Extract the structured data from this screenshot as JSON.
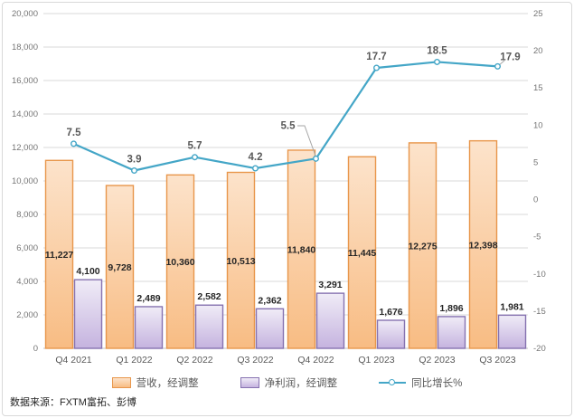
{
  "chart_data": {
    "type": "combo",
    "title": "",
    "categories": [
      "Q4 2021",
      "Q1 2022",
      "Q2 2022",
      "Q3 2022",
      "Q4 2022",
      "Q1 2023",
      "Q2 2023",
      "Q3 2023"
    ],
    "series": [
      {
        "name": "营收，经调整",
        "type": "bar",
        "axis": "left",
        "values": [
          11227,
          9728,
          10360,
          10513,
          11840,
          11445,
          12275,
          12398
        ],
        "labels": [
          "11,227",
          "9,728",
          "10,360",
          "10,513",
          "11,840",
          "11,445",
          "12,275",
          "12,398"
        ],
        "label_position": "inside-center"
      },
      {
        "name": "净利润，经调整",
        "type": "bar",
        "axis": "left",
        "values": [
          4100,
          2489,
          2582,
          2362,
          3291,
          1676,
          1896,
          1981
        ],
        "labels": [
          "4,100",
          "2,489",
          "2,582",
          "2,362",
          "3,291",
          "1,676",
          "1,896",
          "1,981"
        ],
        "label_position": "outside-top"
      },
      {
        "name": "同比增长%",
        "type": "line",
        "axis": "right",
        "values": [
          7.5,
          3.9,
          5.7,
          4.2,
          5.5,
          17.7,
          18.5,
          17.9
        ],
        "labels": [
          "7.5",
          "3.9",
          "5.7",
          "4.2",
          "5.5",
          "17.7",
          "18.5",
          "17.9"
        ],
        "label_position": "above",
        "label_overrides": [
          {
            "index": 4,
            "dx": -31,
            "dy": -33,
            "leader": [
              [
                329,
                139
              ],
              [
                337,
                139
              ],
              [
                349,
                172
              ]
            ]
          },
          {
            "index": 7,
            "dx": 14,
            "dy": -7,
            "leader": [
              [
                558,
                67
              ],
              [
                552,
                72
              ]
            ]
          }
        ]
      }
    ],
    "left_axis": {
      "min": 0,
      "max": 20000,
      "step": 2000,
      "tick_labels": [
        "0",
        "2,000",
        "4,000",
        "6,000",
        "8,000",
        "10,000",
        "12,000",
        "14,000",
        "16,000",
        "18,000",
        "20,000"
      ]
    },
    "right_axis": {
      "min": -20,
      "max": 25,
      "step": 5,
      "tick_labels": [
        "-20",
        "-15",
        "-10",
        "-5",
        "0",
        "5",
        "10",
        "15",
        "20",
        "25"
      ]
    },
    "grid": true,
    "legend_position": "bottom"
  },
  "legend": {
    "items": [
      {
        "label": "营收，经调整",
        "swatch": "bar-orange"
      },
      {
        "label": "净利润，经调整",
        "swatch": "bar-purple"
      },
      {
        "label": "同比增长%",
        "swatch": "line-marker"
      }
    ]
  },
  "source": {
    "label": "数据来源：FXTM富拓、彭博"
  },
  "colors": {
    "revenue_fill_top": "#FCE3CB",
    "revenue_fill_bottom": "#F8BC83",
    "revenue_border": "#E8964B",
    "profit_fill_top": "#F0ECF7",
    "profit_fill_bottom": "#C5B3DF",
    "profit_border": "#8672B0",
    "line": "#44A6C7",
    "marker_fill": "#FFFFFF",
    "grid": "#D9D9D9",
    "axis_line": "#BFBFBF",
    "tick_text": "#757575",
    "category_text": "#595959",
    "bar_label_text": "#262626",
    "line_label_text": "#595959",
    "leader": "#A6A6A6",
    "frame_border": "#D9D9D9"
  }
}
